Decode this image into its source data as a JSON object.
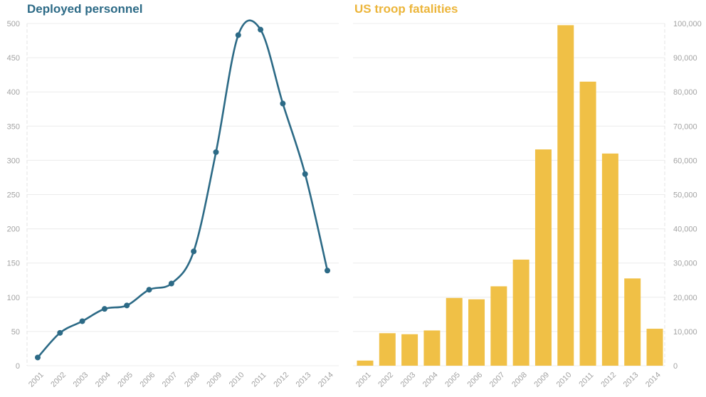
{
  "chart_data": [
    {
      "type": "line",
      "title": "Deployed personnel",
      "x": [
        "2001",
        "2002",
        "2003",
        "2004",
        "2005",
        "2006",
        "2007",
        "2008",
        "2009",
        "2010",
        "2011",
        "2012",
        "2013",
        "2014"
      ],
      "values": [
        12,
        48,
        65,
        83,
        88,
        111,
        120,
        167,
        312,
        483,
        491,
        383,
        280,
        139
      ],
      "ylim": [
        0,
        500
      ],
      "yticks": [
        0,
        50,
        100,
        150,
        200,
        250,
        300,
        350,
        400,
        450,
        500
      ],
      "ytick_labels": [
        "0",
        "50",
        "100",
        "150",
        "200",
        "250",
        "300",
        "350",
        "400",
        "450",
        "500"
      ],
      "grid": true,
      "color": "#2c6a86"
    },
    {
      "type": "bar",
      "title": "US troop fatalities",
      "categories": [
        "2001",
        "2002",
        "2003",
        "2004",
        "2005",
        "2006",
        "2007",
        "2008",
        "2009",
        "2010",
        "2011",
        "2012",
        "2013",
        "2014"
      ],
      "values": [
        1500,
        9500,
        9200,
        10300,
        19800,
        19400,
        23200,
        31000,
        63200,
        99500,
        83000,
        62000,
        25500,
        10800
      ],
      "ylim": [
        0,
        100000
      ],
      "yticks": [
        0,
        10000,
        20000,
        30000,
        40000,
        50000,
        60000,
        70000,
        80000,
        90000,
        100000
      ],
      "ytick_labels": [
        "0",
        "10,000",
        "20,000",
        "30,000",
        "40,000",
        "50,000",
        "60,000",
        "70,000",
        "80,000",
        "90,000",
        "100,000"
      ],
      "grid": true,
      "color": "#f0c046"
    }
  ]
}
